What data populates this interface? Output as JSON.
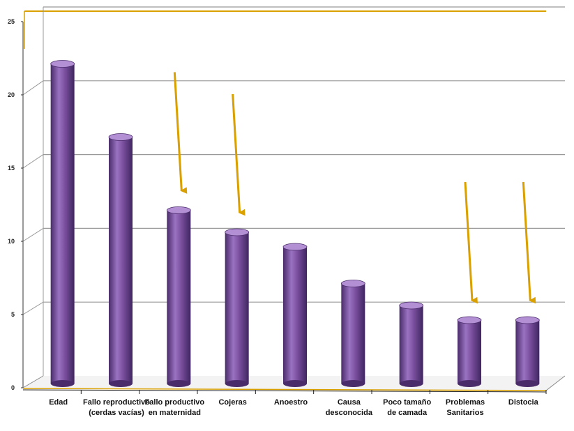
{
  "chart_data": {
    "type": "bar",
    "categories": [
      [
        "Edad"
      ],
      [
        "Fallo reproductivo",
        "(cerdas vacías)"
      ],
      [
        "Fallo productivo",
        "en maternidad"
      ],
      [
        "Cojeras"
      ],
      [
        "Anoestro"
      ],
      [
        "Causa",
        "desconocida"
      ],
      [
        "Poco tamaño",
        "de camada"
      ],
      [
        "Problemas",
        "Sanitarios"
      ],
      [
        "Distocia"
      ]
    ],
    "values": [
      22.5,
      17.5,
      12.5,
      11,
      10,
      7.5,
      6,
      5,
      5
    ],
    "ylim": [
      0,
      25
    ],
    "yticks": [
      "0",
      "5",
      "10",
      "15",
      "20",
      "25"
    ],
    "grid": true,
    "highlighted_categories": [
      "Fallo productivo en maternidad",
      "Cojeras",
      "Problemas Sanitarios",
      "Distocia"
    ],
    "colors": {
      "bar_body": "#7a4f9e",
      "bar_dark": "#4a2c6a",
      "bar_light": "#b38fd4",
      "arrow": "#d9a000",
      "axis_accent": "#d9a000",
      "grid": "#999999"
    }
  }
}
